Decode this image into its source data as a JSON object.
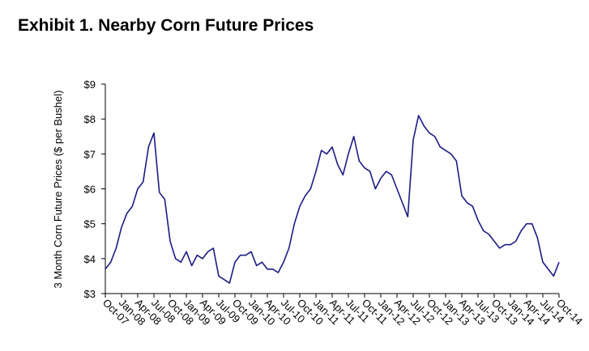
{
  "chart_data": {
    "type": "line",
    "title": "Exhibit 1. Nearby Corn Future Prices",
    "y_label": "3 Month Corn Future Prices ($ per Bushel)",
    "categories": [
      "Oct-07",
      null,
      null,
      "Jan-08",
      null,
      null,
      "Apr-08",
      null,
      null,
      "Jul-08",
      null,
      null,
      "Oct-08",
      null,
      null,
      "Jan-09",
      null,
      null,
      "Apr-09",
      null,
      null,
      "Jul-09",
      null,
      null,
      "Oct-09",
      null,
      null,
      "Jan-10",
      null,
      null,
      "Apr-10",
      null,
      null,
      "Jul-10",
      null,
      null,
      "Oct-10",
      null,
      null,
      "Jan-11",
      null,
      null,
      "Apr-11",
      null,
      null,
      "Jul-11",
      null,
      null,
      "Oct-11",
      null,
      null,
      "Jan-12",
      null,
      null,
      "Apr-12",
      null,
      null,
      "Jul-12",
      null,
      null,
      "Oct-12",
      null,
      null,
      "Jan-13",
      null,
      null,
      "Apr-13",
      null,
      null,
      "Jul-13",
      null,
      null,
      "Oct-13",
      null,
      null,
      "Jan-14",
      null,
      null,
      "Apr-14",
      null,
      null,
      "Jul-14",
      null,
      null,
      "Oct-14"
    ],
    "series": [
      {
        "name": "Nearby Corn Future Price",
        "color": "#1c1c85",
        "values": [
          3.7,
          3.9,
          4.3,
          4.9,
          5.3,
          5.5,
          6.0,
          6.2,
          7.2,
          7.6,
          5.9,
          5.7,
          4.5,
          4.0,
          3.9,
          4.2,
          3.8,
          4.1,
          4.0,
          4.2,
          4.3,
          3.5,
          3.4,
          3.3,
          3.9,
          4.1,
          4.1,
          4.2,
          3.8,
          3.9,
          3.7,
          3.7,
          3.6,
          3.9,
          4.3,
          5.0,
          5.5,
          5.8,
          6.0,
          6.5,
          7.1,
          7.0,
          7.2,
          6.7,
          6.4,
          7.0,
          7.5,
          6.8,
          6.6,
          6.5,
          6.0,
          6.3,
          6.5,
          6.4,
          6.0,
          5.6,
          5.2,
          7.4,
          8.1,
          7.8,
          7.6,
          7.5,
          7.2,
          7.1,
          7.0,
          6.8,
          5.8,
          5.6,
          5.5,
          5.1,
          4.8,
          4.7,
          4.5,
          4.3,
          4.4,
          4.4,
          4.5,
          4.8,
          5.0,
          5.0,
          4.6,
          3.9,
          3.7,
          3.5,
          3.9
        ]
      }
    ],
    "ylim": [
      3,
      9
    ],
    "yticks": [
      {
        "value": 3,
        "label": "$3"
      },
      {
        "value": 4,
        "label": "$4"
      },
      {
        "value": 5,
        "label": "$5"
      },
      {
        "value": 6,
        "label": "$6"
      },
      {
        "value": 7,
        "label": "$7"
      },
      {
        "value": 8,
        "label": "$8"
      },
      {
        "value": 9,
        "label": "$9"
      }
    ],
    "grid": false
  }
}
